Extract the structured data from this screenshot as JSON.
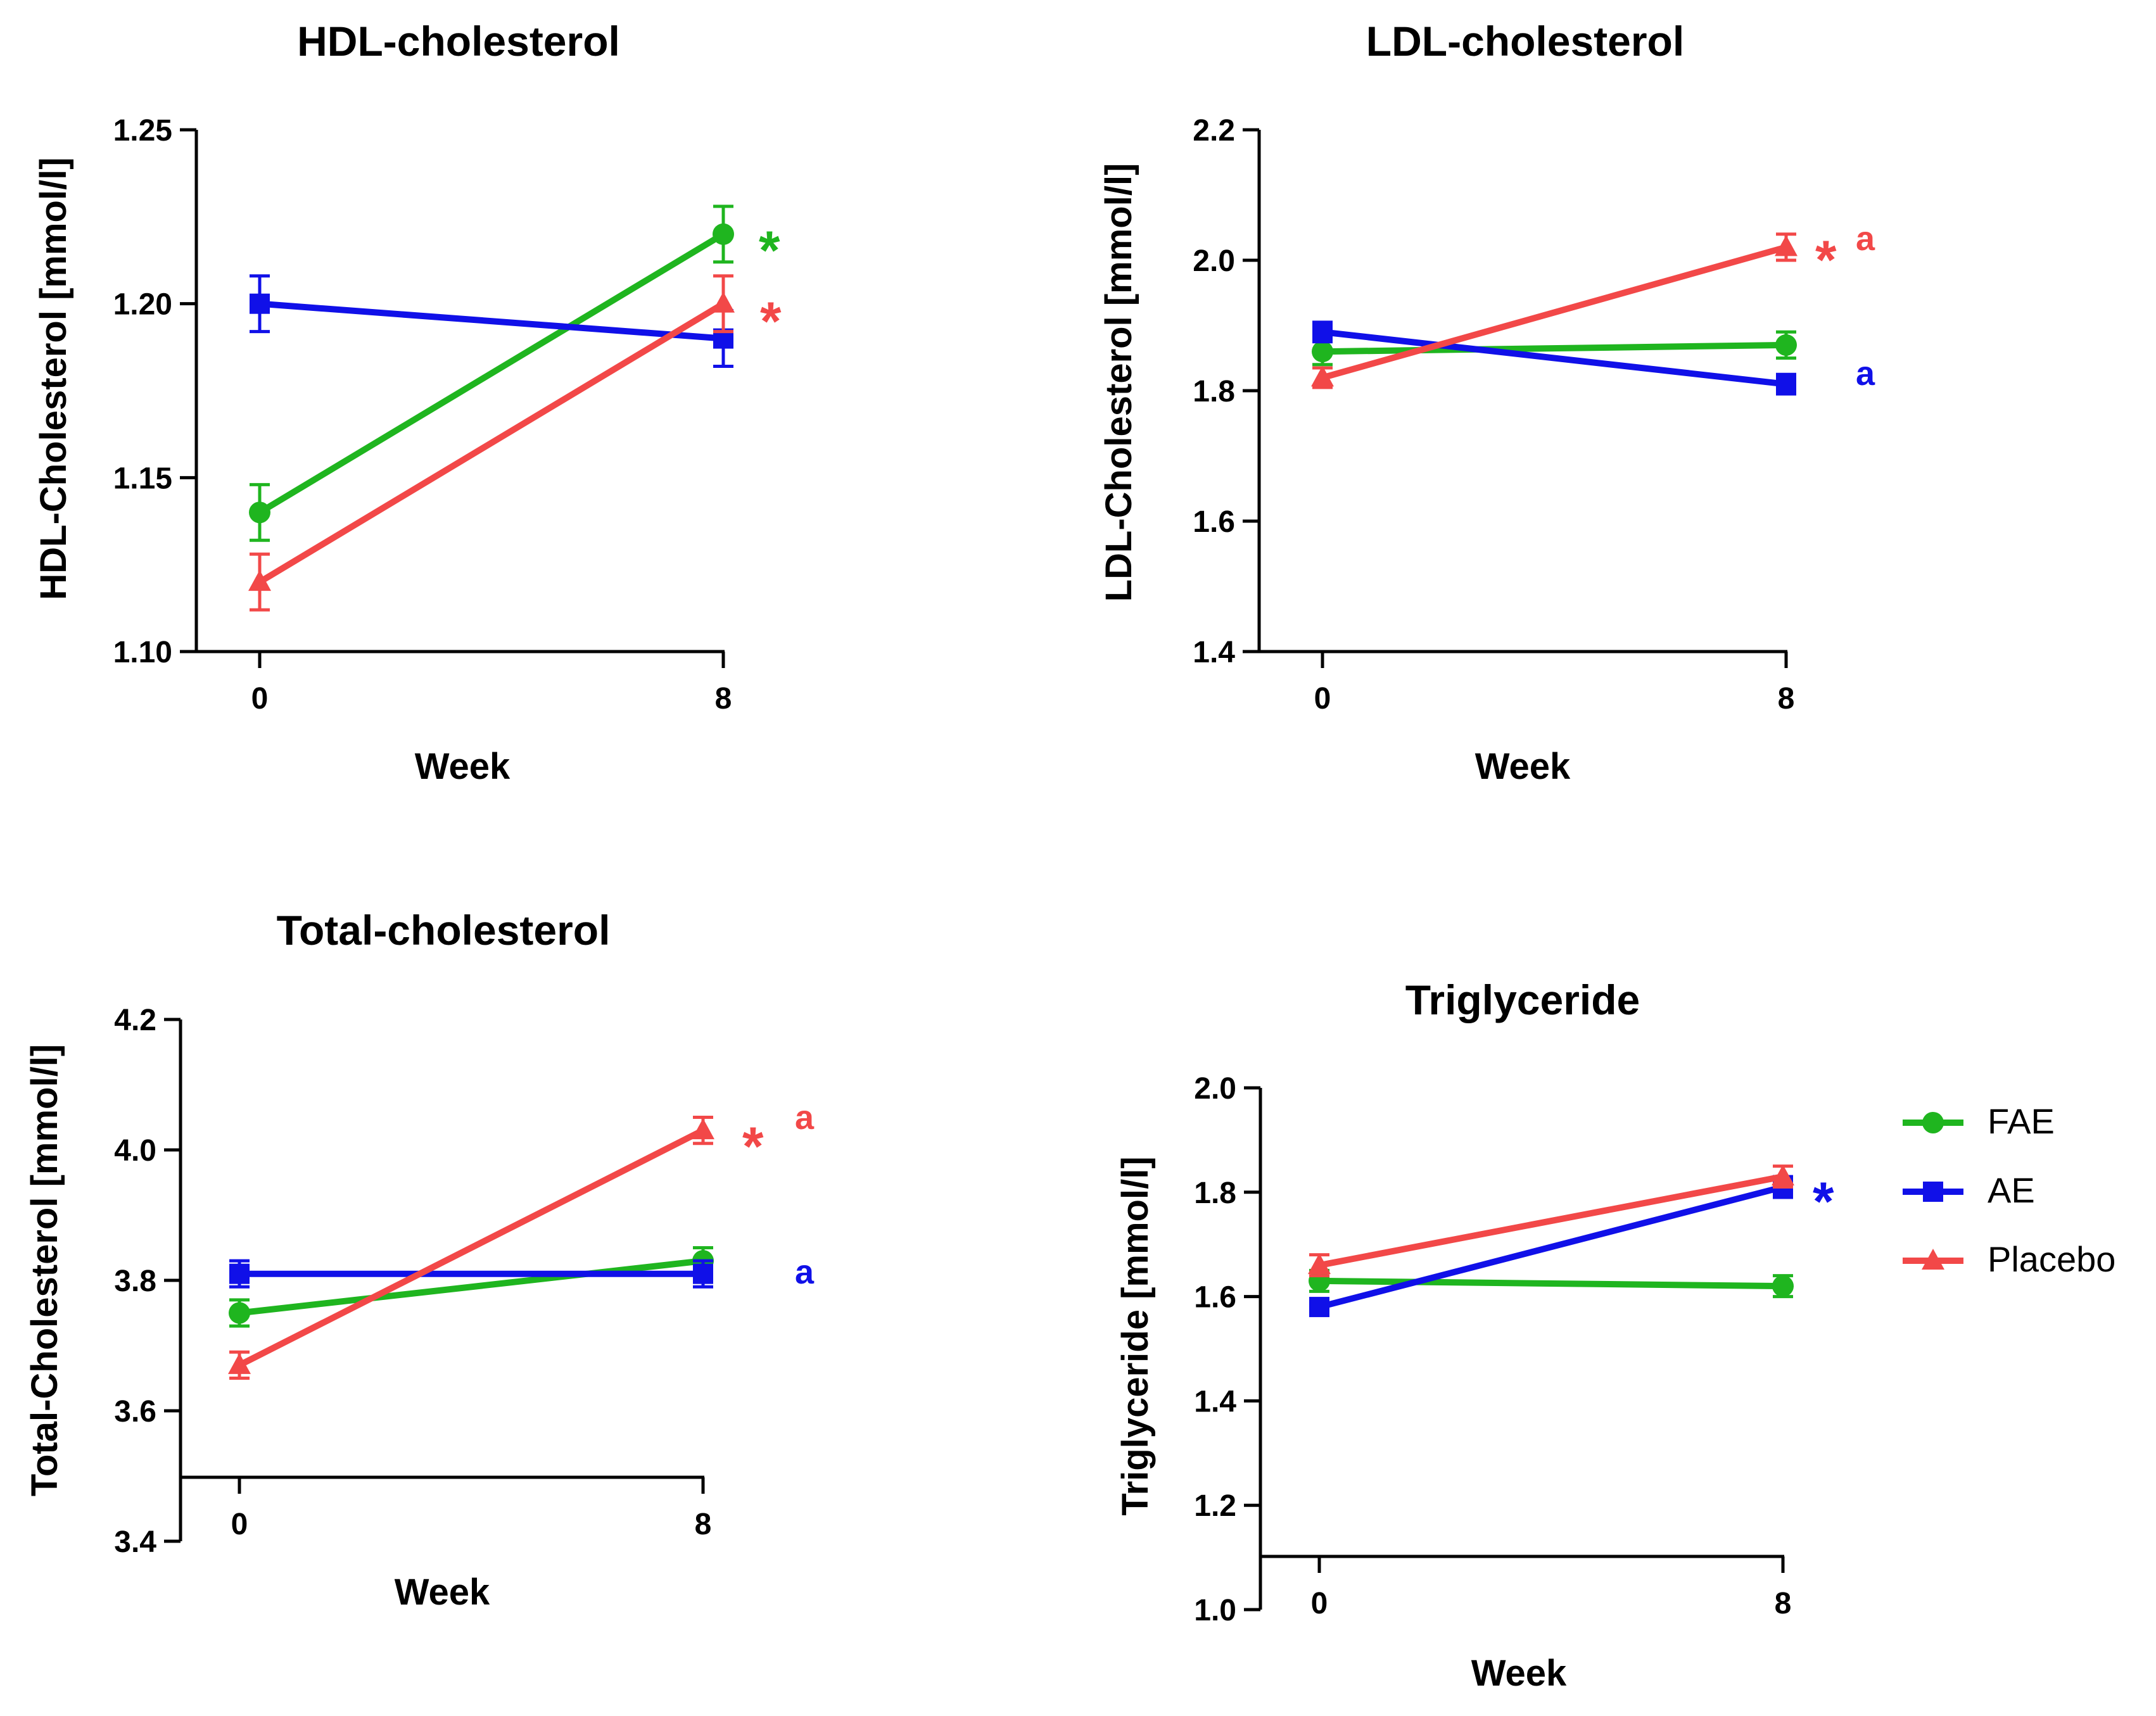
{
  "colors": {
    "FAE": "#1fb51f",
    "AE": "#1010e8",
    "Placebo": "#f24848",
    "axis": "#000000"
  },
  "legend": [
    {
      "series": "FAE",
      "marker": "circle"
    },
    {
      "series": "AE",
      "marker": "square"
    },
    {
      "series": "Placebo",
      "marker": "triangle"
    }
  ],
  "chart_data": [
    {
      "type": "line",
      "title": "HDL-cholesterol",
      "xlabel": "Week",
      "ylabel": "HDL-Cholesterol [mmol/l]",
      "x": [
        0,
        8
      ],
      "xticks": [
        "0",
        "8"
      ],
      "ylim": [
        1.1,
        1.25
      ],
      "yticks": [
        "1.10",
        "1.15",
        "1.20",
        "1.25"
      ],
      "series": [
        {
          "name": "FAE",
          "values": [
            1.14,
            1.22
          ],
          "err": [
            0.008,
            0.008
          ]
        },
        {
          "name": "AE",
          "values": [
            1.2,
            1.19
          ],
          "err": [
            0.008,
            0.008
          ]
        },
        {
          "name": "Placebo",
          "values": [
            1.12,
            1.2
          ],
          "err": [
            0.008,
            0.008
          ]
        }
      ],
      "annotations": [
        {
          "text": "*",
          "series": "FAE"
        },
        {
          "text": "*",
          "series": "Placebo"
        }
      ]
    },
    {
      "type": "line",
      "title": "LDL-cholesterol",
      "xlabel": "Week",
      "ylabel": "LDL-Cholesterol [mmol/l]",
      "x": [
        0,
        8
      ],
      "xticks": [
        "0",
        "8"
      ],
      "ylim": [
        1.4,
        2.2
      ],
      "yticks": [
        "1.4",
        "1.6",
        "1.8",
        "2.0",
        "2.2"
      ],
      "series": [
        {
          "name": "FAE",
          "values": [
            1.86,
            1.87
          ],
          "err": [
            0.02,
            0.02
          ]
        },
        {
          "name": "AE",
          "values": [
            1.89,
            1.81
          ],
          "err": [
            0.015,
            0.015
          ]
        },
        {
          "name": "Placebo",
          "values": [
            1.82,
            2.02
          ],
          "err": [
            0.015,
            0.02
          ]
        }
      ],
      "annotations": [
        {
          "text": "*",
          "series": "Placebo"
        },
        {
          "text": "a",
          "series": "Placebo"
        },
        {
          "text": "a",
          "series": "AE"
        }
      ]
    },
    {
      "type": "line",
      "title": "Total-cholesterol",
      "xlabel": "Week",
      "ylabel": "Total-Cholesterol [mmol/l]",
      "x": [
        0,
        8
      ],
      "xticks": [
        "0",
        "8"
      ],
      "ylim": [
        3.4,
        4.2
      ],
      "yticks": [
        "3.4",
        "3.6",
        "3.8",
        "4.0",
        "4.2"
      ],
      "series": [
        {
          "name": "FAE",
          "values": [
            3.75,
            3.83
          ],
          "err": [
            0.02,
            0.02
          ]
        },
        {
          "name": "AE",
          "values": [
            3.81,
            3.81
          ],
          "err": [
            0.02,
            0.02
          ]
        },
        {
          "name": "Placebo",
          "values": [
            3.67,
            4.03
          ],
          "err": [
            0.02,
            0.02
          ]
        }
      ],
      "annotations": [
        {
          "text": "*",
          "series": "Placebo"
        },
        {
          "text": "a",
          "series": "Placebo"
        },
        {
          "text": "a",
          "series": "AE"
        }
      ]
    },
    {
      "type": "line",
      "title": "Triglyceride",
      "xlabel": "Week",
      "ylabel": "Triglyceride [mmol/l]",
      "x": [
        0,
        8
      ],
      "xticks": [
        "0",
        "8"
      ],
      "ylim": [
        1.0,
        2.0
      ],
      "yticks": [
        "1.0",
        "1.2",
        "1.4",
        "1.6",
        "1.8",
        "2.0"
      ],
      "series": [
        {
          "name": "FAE",
          "values": [
            1.63,
            1.62
          ],
          "err": [
            0.02,
            0.02
          ]
        },
        {
          "name": "AE",
          "values": [
            1.58,
            1.81
          ],
          "err": [
            0.015,
            0.02
          ]
        },
        {
          "name": "Placebo",
          "values": [
            1.66,
            1.83
          ],
          "err": [
            0.02,
            0.02
          ]
        }
      ],
      "annotations": [
        {
          "text": "*",
          "series": "AE"
        }
      ]
    }
  ]
}
